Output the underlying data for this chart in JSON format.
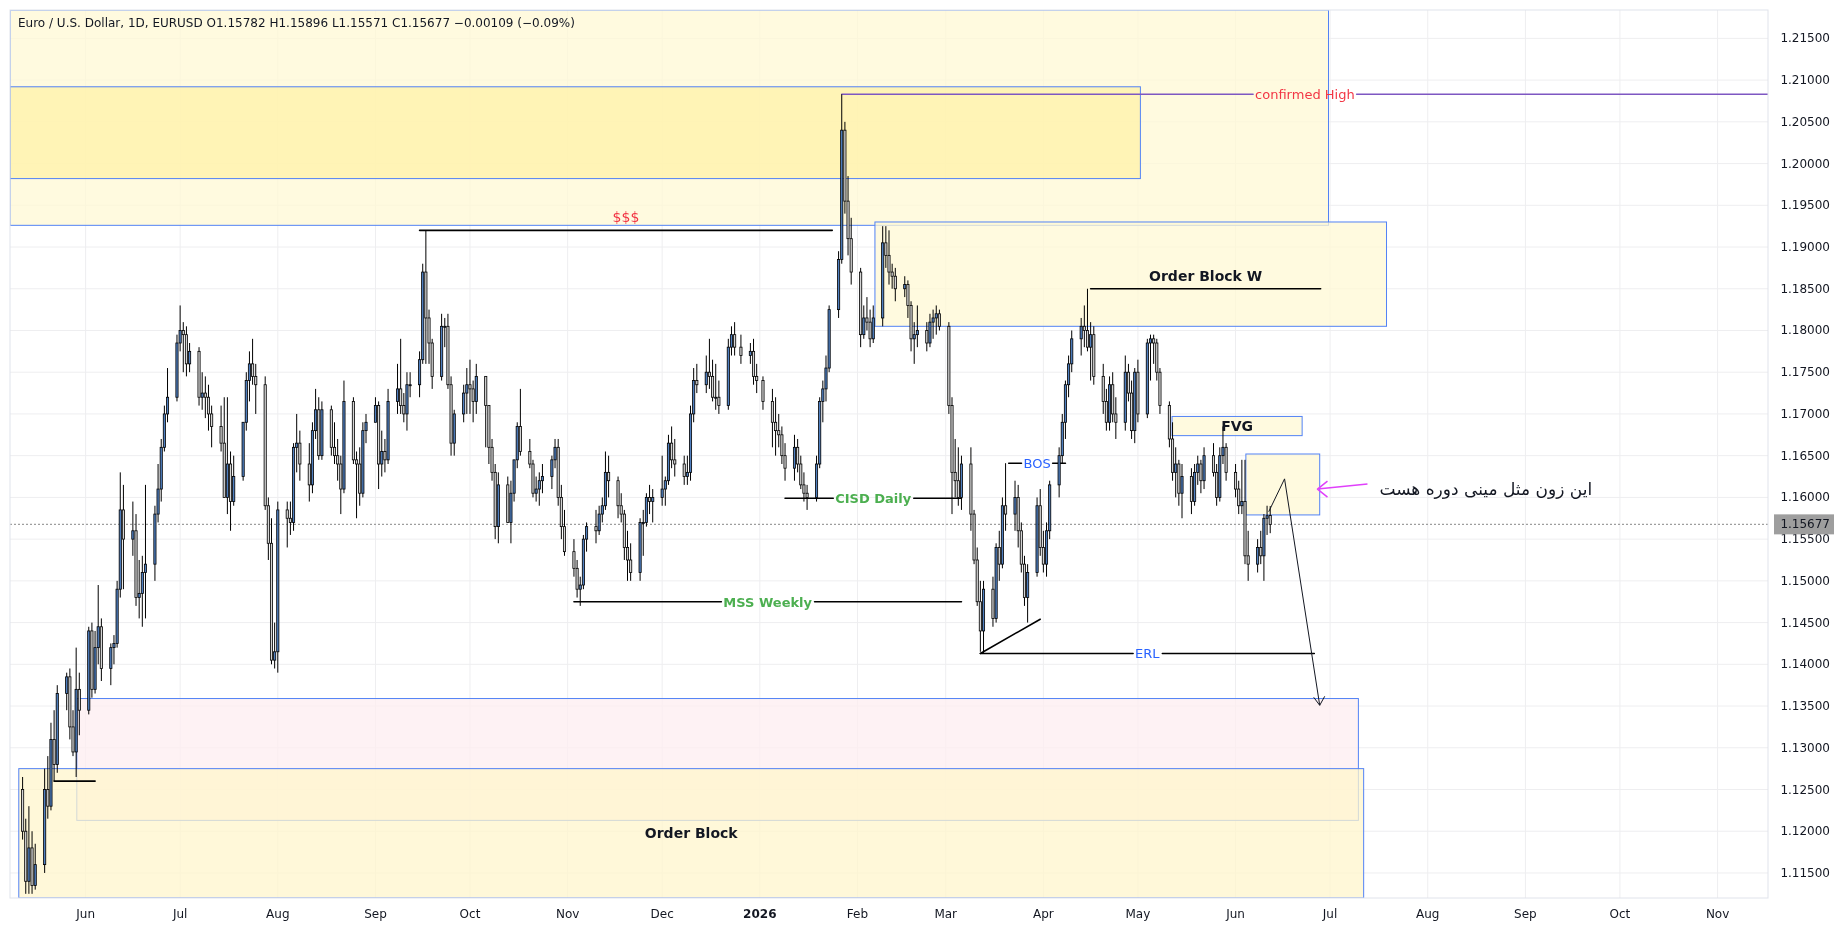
{
  "chart_data": {
    "type": "candlestick",
    "title": "Euro / U.S. Dollar, 1D, EURUSD  O1.15782  H1.15896  L1.15571  C1.15677  −0.00109 (−0.09%)",
    "xlim": [
      "2025-05-08",
      "2026-11-17"
    ],
    "xticks": [
      {
        "value": "2025-06-01",
        "label": "Jun"
      },
      {
        "value": "2025-07-01",
        "label": "Jul"
      },
      {
        "value": "2025-08-01",
        "label": "Aug"
      },
      {
        "value": "2025-09-01",
        "label": "Sep"
      },
      {
        "value": "2025-10-01",
        "label": "Oct"
      },
      {
        "value": "2025-11-01",
        "label": "Nov"
      },
      {
        "value": "2025-12-01",
        "label": "Dec"
      },
      {
        "value": "2026-01-01",
        "label": "2026"
      },
      {
        "value": "2026-02-01",
        "label": "Feb"
      },
      {
        "value": "2026-03-01",
        "label": "Mar"
      },
      {
        "value": "2026-04-01",
        "label": "Apr"
      },
      {
        "value": "2026-05-01",
        "label": "May"
      },
      {
        "value": "2026-06-01",
        "label": "Jun"
      },
      {
        "value": "2026-07-01",
        "label": "Jul"
      },
      {
        "value": "2026-08-01",
        "label": "Aug"
      },
      {
        "value": "2026-09-01",
        "label": "Sep"
      },
      {
        "value": "2026-10-01",
        "label": "Oct"
      },
      {
        "value": "2026-11-01",
        "label": "Nov"
      }
    ],
    "ylim": [
      1.112,
      1.2184
    ],
    "yticks": [
      {
        "value": 1.115,
        "label": "1.11500"
      },
      {
        "value": 1.12,
        "label": "1.12000"
      },
      {
        "value": 1.125,
        "label": "1.12500"
      },
      {
        "value": 1.13,
        "label": "1.13000"
      },
      {
        "value": 1.135,
        "label": "1.13500"
      },
      {
        "value": 1.14,
        "label": "1.14000"
      },
      {
        "value": 1.145,
        "label": "1.14500"
      },
      {
        "value": 1.15,
        "label": "1.15000"
      },
      {
        "value": 1.155,
        "label": "1.15500"
      },
      {
        "value": 1.16,
        "label": "1.16000"
      },
      {
        "value": 1.165,
        "label": "1.16500"
      },
      {
        "value": 1.17,
        "label": "1.17000"
      },
      {
        "value": 1.175,
        "label": "1.17500"
      },
      {
        "value": 1.18,
        "label": "1.18000"
      },
      {
        "value": 1.185,
        "label": "1.18500"
      },
      {
        "value": 1.19,
        "label": "1.19000"
      },
      {
        "value": 1.195,
        "label": "1.19500"
      },
      {
        "value": 1.2,
        "label": "1.20000"
      },
      {
        "value": 1.205,
        "label": "1.20500"
      },
      {
        "value": 1.21,
        "label": "1.21000"
      },
      {
        "value": 1.215,
        "label": "1.21500"
      }
    ],
    "grid": true,
    "x": [
      "2025-05-12",
      "2025-05-13",
      "2025-05-14",
      "2025-05-15",
      "2025-05-16",
      "2025-05-19",
      "2025-05-20",
      "2025-05-21",
      "2025-05-22",
      "2025-05-23",
      "2025-05-26",
      "2025-05-27",
      "2025-05-28",
      "2025-05-29",
      "2025-05-30",
      "2025-06-02",
      "2025-06-03",
      "2025-06-04",
      "2025-06-05",
      "2025-06-06",
      "2025-06-09",
      "2025-06-10",
      "2025-06-11",
      "2025-06-12",
      "2025-06-13",
      "2025-06-16",
      "2025-06-17",
      "2025-06-18",
      "2025-06-19",
      "2025-06-20",
      "2025-06-23",
      "2025-06-24",
      "2025-06-25",
      "2025-06-26",
      "2025-06-27",
      "2025-06-30",
      "2025-07-01",
      "2025-07-02",
      "2025-07-03",
      "2025-07-04",
      "2025-07-07",
      "2025-07-08",
      "2025-07-09",
      "2025-07-10",
      "2025-07-11",
      "2025-07-14",
      "2025-07-15",
      "2025-07-16",
      "2025-07-17",
      "2025-07-18",
      "2025-07-21",
      "2025-07-22",
      "2025-07-23",
      "2025-07-24",
      "2025-07-25",
      "2025-07-28",
      "2025-07-29",
      "2025-07-30",
      "2025-07-31",
      "2025-08-01",
      "2025-08-04",
      "2025-08-05",
      "2025-08-06",
      "2025-08-07",
      "2025-08-08",
      "2025-08-11",
      "2025-08-12",
      "2025-08-13",
      "2025-08-14",
      "2025-08-15",
      "2025-08-18",
      "2025-08-19",
      "2025-08-20",
      "2025-08-21",
      "2025-08-22",
      "2025-08-25",
      "2025-08-26",
      "2025-08-27",
      "2025-08-28",
      "2025-08-29",
      "2025-09-01",
      "2025-09-02",
      "2025-09-03",
      "2025-09-04",
      "2025-09-05",
      "2025-09-08",
      "2025-09-09",
      "2025-09-10",
      "2025-09-11",
      "2025-09-12",
      "2025-09-15",
      "2025-09-16",
      "2025-09-17",
      "2025-09-18",
      "2025-09-19",
      "2025-09-22",
      "2025-09-23",
      "2025-09-24",
      "2025-09-25",
      "2025-09-26",
      "2025-09-29",
      "2025-09-30",
      "2025-10-01",
      "2025-10-02",
      "2025-10-03",
      "2025-10-06",
      "2025-10-07",
      "2025-10-08",
      "2025-10-09",
      "2025-10-10",
      "2025-10-13",
      "2025-10-14",
      "2025-10-15",
      "2025-10-16",
      "2025-10-17",
      "2025-10-20",
      "2025-10-21",
      "2025-10-22",
      "2025-10-23",
      "2025-10-24",
      "2025-10-27",
      "2025-10-28",
      "2025-10-29",
      "2025-10-30",
      "2025-10-31",
      "2025-11-03",
      "2025-11-04",
      "2025-11-05",
      "2025-11-06",
      "2025-11-07",
      "2025-11-10",
      "2025-11-11",
      "2025-11-12",
      "2025-11-13",
      "2025-11-14",
      "2025-11-17",
      "2025-11-18",
      "2025-11-19",
      "2025-11-20",
      "2025-11-21",
      "2025-11-24",
      "2025-11-25",
      "2025-11-26",
      "2025-11-27",
      "2025-11-28",
      "2025-12-01",
      "2025-12-02",
      "2025-12-03",
      "2025-12-04",
      "2025-12-05",
      "2025-12-08",
      "2025-12-09",
      "2025-12-10",
      "2025-12-11",
      "2025-12-12",
      "2025-12-15",
      "2025-12-16",
      "2025-12-17",
      "2025-12-18",
      "2025-12-19",
      "2025-12-22",
      "2025-12-23",
      "2025-12-24",
      "2025-12-26",
      "2025-12-29",
      "2025-12-30",
      "2025-12-31",
      "2026-01-02",
      "2026-01-05",
      "2026-01-06",
      "2026-01-07",
      "2026-01-08",
      "2026-01-09",
      "2026-01-12",
      "2026-01-13",
      "2026-01-14",
      "2026-01-15",
      "2026-01-16",
      "2026-01-19",
      "2026-01-20",
      "2026-01-21",
      "2026-01-22",
      "2026-01-23",
      "2026-01-26",
      "2026-01-27",
      "2026-01-28",
      "2026-01-29",
      "2026-01-30",
      "2026-02-02",
      "2026-02-03",
      "2026-02-04",
      "2026-02-05",
      "2026-02-06",
      "2026-02-09",
      "2026-02-10",
      "2026-02-11",
      "2026-02-12",
      "2026-02-13",
      "2026-02-16",
      "2026-02-17",
      "2026-02-18",
      "2026-02-19",
      "2026-02-20",
      "2026-02-23",
      "2026-02-24",
      "2026-02-25",
      "2026-02-26",
      "2026-02-27",
      "2026-03-02",
      "2026-03-03",
      "2026-03-04",
      "2026-03-05",
      "2026-03-06",
      "2026-03-09",
      "2026-03-10",
      "2026-03-11",
      "2026-03-12",
      "2026-03-13",
      "2026-03-16",
      "2026-03-17",
      "2026-03-18",
      "2026-03-19",
      "2026-03-20",
      "2026-03-23",
      "2026-03-24",
      "2026-03-25",
      "2026-03-26",
      "2026-03-27",
      "2026-03-30",
      "2026-03-31",
      "2026-04-01",
      "2026-04-02",
      "2026-04-03",
      "2026-04-06",
      "2026-04-07",
      "2026-04-08",
      "2026-04-09",
      "2026-04-10",
      "2026-04-13",
      "2026-04-14",
      "2026-04-15",
      "2026-04-16",
      "2026-04-17",
      "2026-04-20",
      "2026-04-21",
      "2026-04-22",
      "2026-04-23",
      "2026-04-24",
      "2026-04-27",
      "2026-04-28",
      "2026-04-29",
      "2026-04-30",
      "2026-05-01",
      "2026-05-04",
      "2026-05-05",
      "2026-05-06",
      "2026-05-07",
      "2026-05-08",
      "2026-05-11",
      "2026-05-12",
      "2026-05-13",
      "2026-05-14",
      "2026-05-15",
      "2026-05-18",
      "2026-05-19",
      "2026-05-20",
      "2026-05-21",
      "2026-05-22",
      "2026-05-25",
      "2026-05-26",
      "2026-05-27",
      "2026-05-28",
      "2026-05-29",
      "2026-06-01",
      "2026-06-02",
      "2026-06-03",
      "2026-06-04",
      "2026-06-05",
      "2026-06-08",
      "2026-06-09",
      "2026-06-10",
      "2026-06-11",
      "2026-06-12"
    ],
    "ohlc": [
      [
        1.125,
        1.1265,
        1.119,
        1.12
      ],
      [
        1.12,
        1.1215,
        1.1125,
        1.114
      ],
      [
        1.114,
        1.123,
        1.1125,
        1.118
      ],
      [
        1.118,
        1.12,
        1.1125,
        1.1135
      ],
      [
        1.1135,
        1.1185,
        1.113,
        1.116
      ],
      [
        1.116,
        1.1275,
        1.115,
        1.125
      ],
      [
        1.125,
        1.129,
        1.1215,
        1.123
      ],
      [
        1.123,
        1.133,
        1.1225,
        1.131
      ],
      [
        1.131,
        1.1345,
        1.126,
        1.128
      ],
      [
        1.128,
        1.1375,
        1.127,
        1.1365
      ],
      [
        1.1365,
        1.139,
        1.1345,
        1.1385
      ],
      [
        1.1385,
        1.1395,
        1.131,
        1.1325
      ],
      [
        1.1325,
        1.1345,
        1.129,
        1.1295
      ],
      [
        1.1295,
        1.142,
        1.1265,
        1.137
      ],
      [
        1.137,
        1.139,
        1.1315,
        1.1345
      ],
      [
        1.1345,
        1.1445,
        1.134,
        1.144
      ],
      [
        1.144,
        1.145,
        1.136,
        1.137
      ],
      [
        1.137,
        1.144,
        1.1365,
        1.142
      ],
      [
        1.142,
        1.1495,
        1.14,
        1.1445
      ],
      [
        1.1445,
        1.1455,
        1.138,
        1.1395
      ],
      [
        1.1395,
        1.1425,
        1.1375,
        1.142
      ],
      [
        1.142,
        1.1435,
        1.14,
        1.1425
      ],
      [
        1.1425,
        1.15,
        1.142,
        1.149
      ],
      [
        1.149,
        1.163,
        1.148,
        1.1585
      ],
      [
        1.1585,
        1.1615,
        1.149,
        1.155
      ],
      [
        1.155,
        1.1595,
        1.153,
        1.156
      ],
      [
        1.156,
        1.158,
        1.147,
        1.148
      ],
      [
        1.148,
        1.1525,
        1.1455,
        1.1485
      ],
      [
        1.1485,
        1.153,
        1.1445,
        1.151
      ],
      [
        1.151,
        1.1615,
        1.1455,
        1.152
      ],
      [
        1.152,
        1.159,
        1.15,
        1.158
      ],
      [
        1.158,
        1.164,
        1.157,
        1.161
      ],
      [
        1.161,
        1.167,
        1.1595,
        1.166
      ],
      [
        1.166,
        1.171,
        1.1655,
        1.17
      ],
      [
        1.17,
        1.1755,
        1.169,
        1.172
      ],
      [
        1.172,
        1.1795,
        1.1715,
        1.1785
      ],
      [
        1.1785,
        1.183,
        1.1775,
        1.18
      ],
      [
        1.18,
        1.181,
        1.175,
        1.1795
      ],
      [
        1.1795,
        1.1805,
        1.1745,
        1.176
      ],
      [
        1.176,
        1.1785,
        1.175,
        1.1775
      ],
      [
        1.1775,
        1.178,
        1.171,
        1.172
      ],
      [
        1.172,
        1.175,
        1.1705,
        1.1725
      ],
      [
        1.1725,
        1.1745,
        1.1695,
        1.172
      ],
      [
        1.172,
        1.1735,
        1.168,
        1.17
      ],
      [
        1.17,
        1.171,
        1.166,
        1.1685
      ],
      [
        1.1685,
        1.171,
        1.1655,
        1.1665
      ],
      [
        1.1665,
        1.172,
        1.16,
        1.16
      ],
      [
        1.16,
        1.172,
        1.158,
        1.164
      ],
      [
        1.164,
        1.1655,
        1.156,
        1.1595
      ],
      [
        1.1595,
        1.165,
        1.159,
        1.1625
      ],
      [
        1.1625,
        1.169,
        1.162,
        1.169
      ],
      [
        1.169,
        1.175,
        1.168,
        1.174
      ],
      [
        1.174,
        1.1775,
        1.1715,
        1.176
      ],
      [
        1.176,
        1.179,
        1.1735,
        1.1745
      ],
      [
        1.1745,
        1.176,
        1.17,
        1.1735
      ],
      [
        1.1735,
        1.1745,
        1.1585,
        1.159
      ],
      [
        1.159,
        1.16,
        1.1525,
        1.1545
      ],
      [
        1.1545,
        1.1575,
        1.14,
        1.1405
      ],
      [
        1.1405,
        1.145,
        1.1395,
        1.1415
      ],
      [
        1.1415,
        1.1595,
        1.139,
        1.1585
      ],
      [
        1.1585,
        1.1595,
        1.154,
        1.1575
      ],
      [
        1.1575,
        1.1595,
        1.1555,
        1.157
      ],
      [
        1.157,
        1.1665,
        1.156,
        1.166
      ],
      [
        1.166,
        1.17,
        1.163,
        1.1665
      ],
      [
        1.1665,
        1.168,
        1.162,
        1.164
      ],
      [
        1.164,
        1.1665,
        1.1595,
        1.1615
      ],
      [
        1.1615,
        1.169,
        1.1605,
        1.168
      ],
      [
        1.168,
        1.173,
        1.167,
        1.1705
      ],
      [
        1.1705,
        1.172,
        1.1645,
        1.165
      ],
      [
        1.165,
        1.1715,
        1.1645,
        1.1705
      ],
      [
        1.1705,
        1.171,
        1.165,
        1.166
      ],
      [
        1.166,
        1.169,
        1.164,
        1.165
      ],
      [
        1.165,
        1.167,
        1.162,
        1.164
      ],
      [
        1.164,
        1.165,
        1.158,
        1.161
      ],
      [
        1.161,
        1.174,
        1.1605,
        1.1715
      ],
      [
        1.1715,
        1.172,
        1.164,
        1.1645
      ],
      [
        1.1645,
        1.1655,
        1.1575,
        1.164
      ],
      [
        1.164,
        1.166,
        1.159,
        1.1605
      ],
      [
        1.1605,
        1.169,
        1.16,
        1.168
      ],
      [
        1.168,
        1.17,
        1.1665,
        1.169
      ],
      [
        1.169,
        1.172,
        1.169,
        1.171
      ],
      [
        1.171,
        1.1715,
        1.161,
        1.164
      ],
      [
        1.164,
        1.168,
        1.1625,
        1.1655
      ],
      [
        1.1655,
        1.167,
        1.163,
        1.1645
      ],
      [
        1.1645,
        1.173,
        1.164,
        1.1715
      ],
      [
        1.1715,
        1.176,
        1.17,
        1.173
      ],
      [
        1.173,
        1.179,
        1.17,
        1.171
      ],
      [
        1.171,
        1.1725,
        1.169,
        1.17
      ],
      [
        1.17,
        1.175,
        1.168,
        1.1735
      ],
      [
        1.1735,
        1.175,
        1.172,
        1.1735
      ],
      [
        1.1735,
        1.1775,
        1.172,
        1.1765
      ],
      [
        1.1765,
        1.188,
        1.176,
        1.187
      ],
      [
        1.187,
        1.192,
        1.176,
        1.1815
      ],
      [
        1.1815,
        1.1825,
        1.176,
        1.1785
      ],
      [
        1.1785,
        1.179,
        1.173,
        1.1745
      ],
      [
        1.1745,
        1.182,
        1.174,
        1.1805
      ],
      [
        1.1805,
        1.1815,
        1.178,
        1.1805
      ],
      [
        1.1805,
        1.182,
        1.173,
        1.1735
      ],
      [
        1.1735,
        1.1745,
        1.165,
        1.1665
      ],
      [
        1.1665,
        1.1705,
        1.165,
        1.17
      ],
      [
        1.17,
        1.1735,
        1.169,
        1.1725
      ],
      [
        1.1725,
        1.1755,
        1.17,
        1.1735
      ],
      [
        1.1735,
        1.1765,
        1.17,
        1.173
      ],
      [
        1.173,
        1.174,
        1.169,
        1.1715
      ],
      [
        1.1715,
        1.176,
        1.17,
        1.1745
      ],
      [
        1.1745,
        1.1745,
        1.166,
        1.171
      ],
      [
        1.171,
        1.171,
        1.164,
        1.166
      ],
      [
        1.166,
        1.167,
        1.162,
        1.163
      ],
      [
        1.163,
        1.164,
        1.155,
        1.1565
      ],
      [
        1.1565,
        1.163,
        1.1545,
        1.1615
      ],
      [
        1.1615,
        1.1625,
        1.157,
        1.157
      ],
      [
        1.157,
        1.162,
        1.1545,
        1.1605
      ],
      [
        1.1605,
        1.1645,
        1.1595,
        1.1645
      ],
      [
        1.1645,
        1.169,
        1.1635,
        1.1685
      ],
      [
        1.1685,
        1.173,
        1.165,
        1.1655
      ],
      [
        1.1655,
        1.167,
        1.1635,
        1.164
      ],
      [
        1.164,
        1.1645,
        1.16,
        1.1605
      ],
      [
        1.1605,
        1.1625,
        1.1595,
        1.161
      ],
      [
        1.161,
        1.163,
        1.159,
        1.162
      ],
      [
        1.162,
        1.164,
        1.1605,
        1.1625
      ],
      [
        1.1625,
        1.165,
        1.161,
        1.1645
      ],
      [
        1.1645,
        1.167,
        1.1635,
        1.166
      ],
      [
        1.166,
        1.167,
        1.159,
        1.16
      ],
      [
        1.16,
        1.1615,
        1.155,
        1.1565
      ],
      [
        1.1565,
        1.1585,
        1.153,
        1.1535
      ],
      [
        1.1535,
        1.155,
        1.1505,
        1.1515
      ],
      [
        1.1515,
        1.1525,
        1.148,
        1.149
      ],
      [
        1.149,
        1.1505,
        1.147,
        1.1495
      ],
      [
        1.1495,
        1.1555,
        1.149,
        1.155
      ],
      [
        1.155,
        1.157,
        1.1535,
        1.1565
      ],
      [
        1.1565,
        1.1585,
        1.1545,
        1.156
      ],
      [
        1.156,
        1.159,
        1.1555,
        1.158
      ],
      [
        1.158,
        1.16,
        1.157,
        1.159
      ],
      [
        1.159,
        1.1655,
        1.1585,
        1.163
      ],
      [
        1.163,
        1.165,
        1.16,
        1.162
      ],
      [
        1.162,
        1.1625,
        1.1575,
        1.159
      ],
      [
        1.159,
        1.1605,
        1.157,
        1.158
      ],
      [
        1.158,
        1.1585,
        1.1525,
        1.154
      ],
      [
        1.154,
        1.156,
        1.15,
        1.1525
      ],
      [
        1.1525,
        1.1545,
        1.15,
        1.151
      ],
      [
        1.151,
        1.1575,
        1.15,
        1.157
      ],
      [
        1.157,
        1.1585,
        1.153,
        1.157
      ],
      [
        1.157,
        1.1605,
        1.1565,
        1.16
      ],
      [
        1.16,
        1.1615,
        1.158,
        1.1595
      ],
      [
        1.1595,
        1.161,
        1.157,
        1.16
      ],
      [
        1.16,
        1.165,
        1.159,
        1.161
      ],
      [
        1.161,
        1.1625,
        1.159,
        1.162
      ],
      [
        1.162,
        1.1675,
        1.1615,
        1.1665
      ],
      [
        1.1665,
        1.1685,
        1.1635,
        1.1645
      ],
      [
        1.1645,
        1.167,
        1.1625,
        1.164
      ],
      [
        1.164,
        1.165,
        1.1615,
        1.1625
      ],
      [
        1.1625,
        1.165,
        1.1615,
        1.163
      ],
      [
        1.163,
        1.171,
        1.162,
        1.17
      ],
      [
        1.17,
        1.1755,
        1.169,
        1.174
      ],
      [
        1.174,
        1.176,
        1.1725,
        1.1735
      ],
      [
        1.1735,
        1.177,
        1.1725,
        1.175
      ],
      [
        1.175,
        1.179,
        1.173,
        1.1745
      ],
      [
        1.1745,
        1.1765,
        1.1715,
        1.172
      ],
      [
        1.172,
        1.176,
        1.1705,
        1.172
      ],
      [
        1.172,
        1.174,
        1.17,
        1.171
      ],
      [
        1.171,
        1.179,
        1.1705,
        1.178
      ],
      [
        1.178,
        1.1805,
        1.177,
        1.1795
      ],
      [
        1.1795,
        1.181,
        1.177,
        1.178
      ],
      [
        1.178,
        1.1795,
        1.176,
        1.177
      ],
      [
        1.177,
        1.1785,
        1.176,
        1.1775
      ],
      [
        1.1775,
        1.179,
        1.1735,
        1.1745
      ],
      [
        1.1745,
        1.176,
        1.1725,
        1.174
      ],
      [
        1.174,
        1.1745,
        1.1705,
        1.1715
      ],
      [
        1.1715,
        1.173,
        1.166,
        1.169
      ],
      [
        1.169,
        1.172,
        1.165,
        1.168
      ],
      [
        1.168,
        1.17,
        1.166,
        1.1675
      ],
      [
        1.1675,
        1.1685,
        1.164,
        1.165
      ],
      [
        1.165,
        1.1665,
        1.162,
        1.1635
      ],
      [
        1.1635,
        1.1675,
        1.162,
        1.166
      ],
      [
        1.166,
        1.167,
        1.163,
        1.164
      ],
      [
        1.164,
        1.165,
        1.161,
        1.1615
      ],
      [
        1.1615,
        1.163,
        1.1595,
        1.1605
      ],
      [
        1.1605,
        1.1615,
        1.1585,
        1.16
      ],
      [
        1.16,
        1.165,
        1.1595,
        1.164
      ],
      [
        1.164,
        1.172,
        1.1635,
        1.1715
      ],
      [
        1.1715,
        1.174,
        1.169,
        1.173
      ],
      [
        1.173,
        1.177,
        1.1715,
        1.1755
      ],
      [
        1.1755,
        1.183,
        1.175,
        1.1825
      ],
      [
        1.1825,
        1.1895,
        1.1815,
        1.1885
      ],
      [
        1.1885,
        1.2083,
        1.188,
        1.204
      ],
      [
        1.204,
        1.205,
        1.194,
        1.1955
      ],
      [
        1.1955,
        1.1985,
        1.189,
        1.191
      ],
      [
        1.191,
        1.1935,
        1.1855,
        1.187
      ],
      [
        1.187,
        1.1875,
        1.178,
        1.1795
      ],
      [
        1.1795,
        1.183,
        1.179,
        1.1815
      ],
      [
        1.1815,
        1.184,
        1.18,
        1.181
      ],
      [
        1.181,
        1.1825,
        1.178,
        1.179
      ],
      [
        1.179,
        1.183,
        1.1785,
        1.1815
      ],
      [
        1.1815,
        1.1925,
        1.1805,
        1.1905
      ],
      [
        1.1905,
        1.1925,
        1.1875,
        1.189
      ],
      [
        1.189,
        1.192,
        1.1855,
        1.187
      ],
      [
        1.187,
        1.188,
        1.185,
        1.1865
      ],
      [
        1.1865,
        1.1875,
        1.1835,
        1.185
      ],
      [
        1.185,
        1.1865,
        1.184,
        1.1855
      ],
      [
        1.1855,
        1.186,
        1.1815,
        1.183
      ],
      [
        1.183,
        1.1835,
        1.1775,
        1.179
      ],
      [
        1.179,
        1.181,
        1.176,
        1.1795
      ],
      [
        1.1795,
        1.183,
        1.178,
        1.18
      ],
      [
        1.18,
        1.181,
        1.1775,
        1.1785
      ],
      [
        1.1785,
        1.182,
        1.178,
        1.181
      ],
      [
        1.181,
        1.1825,
        1.179,
        1.1815
      ],
      [
        1.1815,
        1.183,
        1.1795,
        1.182
      ],
      [
        1.182,
        1.1825,
        1.18,
        1.1805
      ],
      [
        1.1805,
        1.181,
        1.17,
        1.171
      ],
      [
        1.171,
        1.172,
        1.158,
        1.163
      ],
      [
        1.163,
        1.167,
        1.16,
        1.162
      ],
      [
        1.162,
        1.166,
        1.159,
        1.16
      ],
      [
        1.16,
        1.165,
        1.1585,
        1.164
      ],
      [
        1.164,
        1.166,
        1.156,
        1.158
      ],
      [
        1.158,
        1.1585,
        1.152,
        1.1525
      ],
      [
        1.1525,
        1.154,
        1.147,
        1.1475
      ],
      [
        1.1475,
        1.15,
        1.1415,
        1.144
      ],
      [
        1.144,
        1.15,
        1.1413,
        1.149
      ],
      [
        1.149,
        1.1505,
        1.1445,
        1.1455
      ],
      [
        1.1455,
        1.1545,
        1.145,
        1.154
      ],
      [
        1.154,
        1.156,
        1.15,
        1.152
      ],
      [
        1.152,
        1.16,
        1.1515,
        1.159
      ],
      [
        1.159,
        1.1641,
        1.156,
        1.158
      ],
      [
        1.158,
        1.162,
        1.156,
        1.16
      ],
      [
        1.16,
        1.1615,
        1.154,
        1.156
      ],
      [
        1.156,
        1.157,
        1.151,
        1.152
      ],
      [
        1.152,
        1.153,
        1.147,
        1.148
      ],
      [
        1.148,
        1.152,
        1.145,
        1.151
      ],
      [
        1.151,
        1.16,
        1.1505,
        1.159
      ],
      [
        1.159,
        1.161,
        1.153,
        1.154
      ],
      [
        1.154,
        1.156,
        1.151,
        1.152
      ],
      [
        1.152,
        1.157,
        1.1505,
        1.156
      ],
      [
        1.156,
        1.162,
        1.155,
        1.1615
      ],
      [
        1.1615,
        1.166,
        1.16,
        1.165
      ],
      [
        1.165,
        1.17,
        1.164,
        1.169
      ],
      [
        1.169,
        1.174,
        1.167,
        1.1735
      ],
      [
        1.1735,
        1.177,
        1.172,
        1.176
      ],
      [
        1.176,
        1.18,
        1.175,
        1.179
      ],
      [
        1.179,
        1.1815,
        1.177,
        1.1805
      ],
      [
        1.1805,
        1.183,
        1.178,
        1.18
      ],
      [
        1.18,
        1.185,
        1.1775,
        1.178
      ],
      [
        1.178,
        1.181,
        1.174,
        1.1795
      ],
      [
        1.1795,
        1.1805,
        1.1735,
        1.1745
      ],
      [
        1.1745,
        1.176,
        1.17,
        1.1715
      ],
      [
        1.1715,
        1.173,
        1.168,
        1.169
      ],
      [
        1.169,
        1.1745,
        1.168,
        1.1735
      ],
      [
        1.1735,
        1.175,
        1.169,
        1.17
      ],
      [
        1.17,
        1.172,
        1.167,
        1.169
      ],
      [
        1.169,
        1.177,
        1.168,
        1.175
      ],
      [
        1.175,
        1.176,
        1.1715,
        1.1725
      ],
      [
        1.1725,
        1.174,
        1.167,
        1.168
      ],
      [
        1.168,
        1.1755,
        1.1665,
        1.175
      ],
      [
        1.175,
        1.1765,
        1.169,
        1.17
      ],
      [
        1.17,
        1.179,
        1.1695,
        1.1785
      ],
      [
        1.1785,
        1.1795,
        1.174,
        1.179
      ],
      [
        1.179,
        1.1795,
        1.176,
        1.1785
      ],
      [
        1.1785,
        1.179,
        1.174,
        1.175
      ],
      [
        1.175,
        1.1755,
        1.17,
        1.171
      ],
      [
        1.171,
        1.1715,
        1.166,
        1.167
      ],
      [
        1.167,
        1.169,
        1.162,
        1.163
      ],
      [
        1.163,
        1.166,
        1.16,
        1.164
      ],
      [
        1.164,
        1.1645,
        1.159,
        1.1605
      ],
      [
        1.1605,
        1.164,
        1.1575,
        1.1625
      ],
      [
        1.1625,
        1.1635,
        1.158,
        1.1595
      ],
      [
        1.1595,
        1.164,
        1.159,
        1.163
      ],
      [
        1.163,
        1.165,
        1.1615,
        1.164
      ],
      [
        1.164,
        1.1645,
        1.1605,
        1.162
      ],
      [
        1.162,
        1.166,
        1.161,
        1.165
      ],
      [
        1.165,
        1.1665,
        1.1625,
        1.163
      ],
      [
        1.163,
        1.164,
        1.159,
        1.16
      ],
      [
        1.16,
        1.166,
        1.1595,
        1.165
      ],
      [
        1.165,
        1.1685,
        1.164,
        1.166
      ],
      [
        1.166,
        1.1665,
        1.162,
        1.163
      ],
      [
        1.163,
        1.164,
        1.16,
        1.161
      ],
      [
        1.161,
        1.162,
        1.158,
        1.159
      ],
      [
        1.159,
        1.1645,
        1.158,
        1.1595
      ],
      [
        1.1595,
        1.1645,
        1.152,
        1.153
      ],
      [
        1.153,
        1.156,
        1.15,
        1.152
      ],
      [
        1.152,
        1.155,
        1.151,
        1.154
      ],
      [
        1.154,
        1.156,
        1.152,
        1.153
      ],
      [
        1.153,
        1.158,
        1.15,
        1.1575
      ],
      [
        1.1575,
        1.159,
        1.1555,
        1.1578
      ],
      [
        1.15782,
        1.15896,
        1.15571,
        1.15677
      ]
    ],
    "series": [
      {
        "type": "line",
        "name": "confirmed High",
        "x": [
          "2026-01-27",
          "2026-11-17"
        ],
        "values": [
          1.2083,
          1.2083
        ],
        "color": "#7e57c2"
      },
      {
        "type": "line",
        "name": "$$$",
        "x": [
          "2025-09-15",
          "2026-01-24"
        ],
        "values": [
          1.192,
          1.192
        ],
        "color": "#000000"
      },
      {
        "type": "line",
        "name": "Order Block W",
        "x": [
          "2026-04-16",
          "2026-06-28"
        ],
        "values": [
          1.185,
          1.185
        ],
        "color": "#000000"
      },
      {
        "type": "line",
        "name": "BOS",
        "x": [
          "2026-03-21",
          "2026-04-08"
        ],
        "values": [
          1.1641,
          1.1641
        ],
        "color": "#000000"
      },
      {
        "type": "line",
        "name": "CISD Daily",
        "x": [
          "2026-01-09",
          "2026-03-06"
        ],
        "values": [
          1.1599,
          1.1599
        ],
        "color": "#000000"
      },
      {
        "type": "line",
        "name": "MSS Weekly",
        "x": [
          "2025-11-03",
          "2026-03-06"
        ],
        "values": [
          1.1475,
          1.1475
        ],
        "color": "#000000"
      },
      {
        "type": "line",
        "name": "ERL",
        "x": [
          "2026-03-12",
          "2026-06-26"
        ],
        "values": [
          1.1413,
          1.1413
        ],
        "color": "#000000"
      },
      {
        "type": "line",
        "x": [
          "2025-05-22",
          "2025-06-04"
        ],
        "values": [
          1.126,
          1.126
        ],
        "color": "#000000"
      },
      {
        "type": "line",
        "x": [
          "2026-03-12",
          "2026-03-31"
        ],
        "values": [
          1.1413,
          1.1454
        ],
        "color": "#000000"
      }
    ],
    "bands": [
      {
        "axis": "y",
        "from": 1.1926,
        "to": 1.2184,
        "color": "#fff8d4"
      },
      {
        "axis": "y",
        "from": 1.1982,
        "to": 1.2092,
        "color": "#fff1a8"
      },
      {
        "axis": "y",
        "from": 1.1805,
        "to": 1.193,
        "color": "#fff8d4"
      },
      {
        "axis": "y",
        "from": 1.1674,
        "to": 1.1697,
        "color": "#fff8d4",
        "label": "FVG"
      },
      {
        "axis": "y",
        "from": 1.1579,
        "to": 1.1652,
        "color": "#fff8d4"
      },
      {
        "axis": "y",
        "from": 1.1213,
        "to": 1.1359,
        "color": "#fdeef0"
      },
      {
        "axis": "y",
        "from": 1.112,
        "to": 1.1275,
        "color": "#fff5cc",
        "label": "Order Block"
      }
    ],
    "ref_lines": [
      {
        "axis": "y",
        "value": 1.15677,
        "label": "1.15677",
        "color": "#9e9e9e",
        "line_style": "dotted"
      }
    ],
    "annotations": [
      {
        "text": "این زون مثل مینی دوره هست",
        "x": "2026-06-27",
        "y": 1.161
      }
    ]
  }
}
